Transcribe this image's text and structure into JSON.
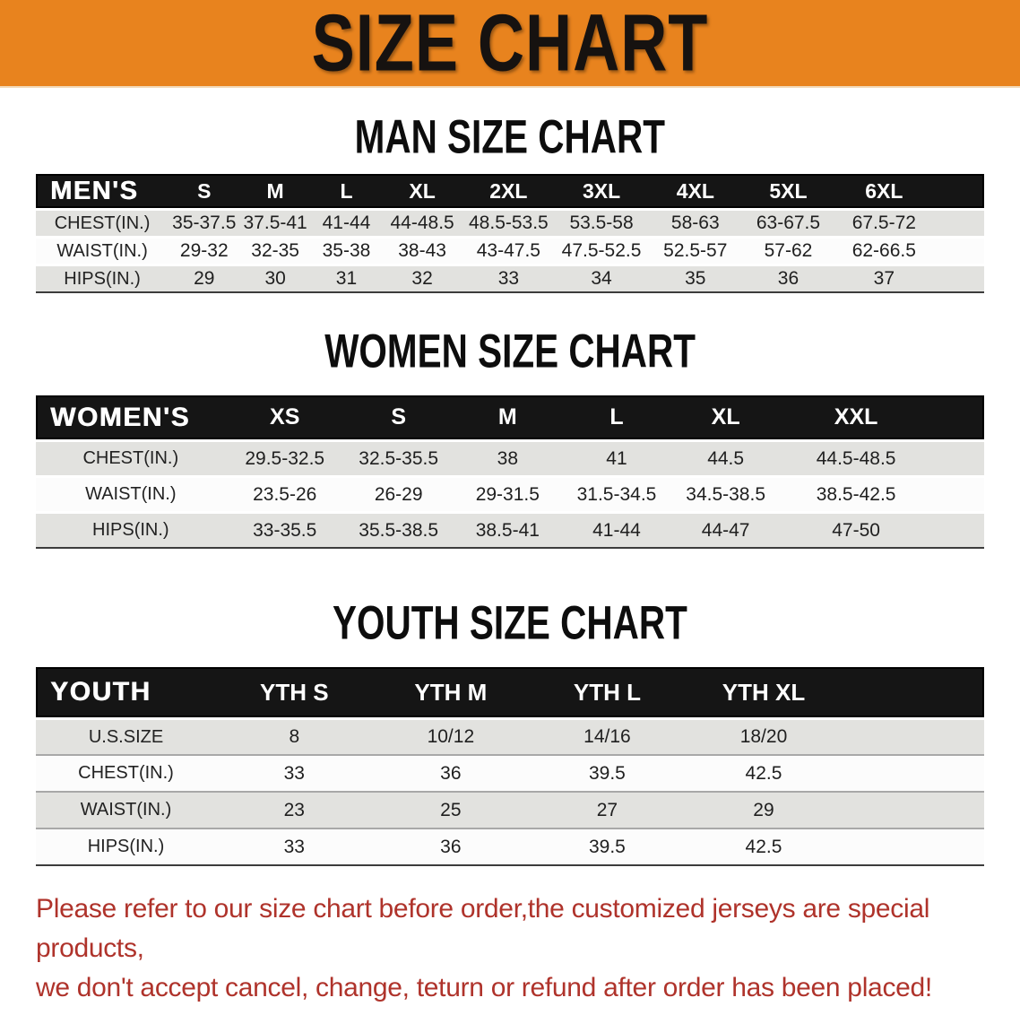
{
  "banner": {
    "title": "SIZE CHART"
  },
  "colors": {
    "banner_bg": "#E8831E",
    "header_bar": "#151515",
    "row_gray": "#E2E2DF",
    "row_white": "#FCFCFC",
    "disclaimer_red": "#AF332B"
  },
  "sections": [
    {
      "heading": "MAN SIZE CHART",
      "table": {
        "header_label": "MEN'S",
        "columns": [
          "S",
          "M",
          "L",
          "XL",
          "2XL",
          "3XL",
          "4XL",
          "5XL",
          "6XL"
        ],
        "rows": [
          {
            "label": "CHEST(IN.)",
            "values": [
              "35-37.5",
              "37.5-41",
              "41-44",
              "44-48.5",
              "48.5-53.5",
              "53.5-58",
              "58-63",
              "63-67.5",
              "67.5-72"
            ]
          },
          {
            "label": "WAIST(IN.)",
            "values": [
              "29-32",
              "32-35",
              "35-38",
              "38-43",
              "43-47.5",
              "47.5-52.5",
              "52.5-57",
              "57-62",
              "62-66.5"
            ]
          },
          {
            "label": "HIPS(IN.)",
            "values": [
              "29",
              "30",
              "31",
              "32",
              "33",
              "34",
              "35",
              "36",
              "37"
            ]
          }
        ]
      }
    },
    {
      "heading": "WOMEN SIZE CHART",
      "table": {
        "header_label": "WOMEN'S",
        "columns": [
          "XS",
          "S",
          "M",
          "L",
          "XL",
          "XXL"
        ],
        "rows": [
          {
            "label": "CHEST(IN.)",
            "values": [
              "29.5-32.5",
              "32.5-35.5",
              "38",
              "41",
              "44.5",
              "44.5-48.5"
            ]
          },
          {
            "label": "WAIST(IN.)",
            "values": [
              "23.5-26",
              "26-29",
              "29-31.5",
              "31.5-34.5",
              "34.5-38.5",
              "38.5-42.5"
            ]
          },
          {
            "label": "HIPS(IN.)",
            "values": [
              "33-35.5",
              "35.5-38.5",
              "38.5-41",
              "41-44",
              "44-47",
              "47-50"
            ]
          }
        ]
      }
    },
    {
      "heading": "YOUTH SIZE CHART",
      "table": {
        "header_label": "YOUTH",
        "columns": [
          "YTH S",
          "YTH M",
          "YTH L",
          "YTH XL"
        ],
        "rows": [
          {
            "label": "U.S.SIZE",
            "values": [
              "8",
              "10/12",
              "14/16",
              "18/20"
            ]
          },
          {
            "label": "CHEST(IN.)",
            "values": [
              "33",
              "36",
              "39.5",
              "42.5"
            ]
          },
          {
            "label": "WAIST(IN.)",
            "values": [
              "23",
              "25",
              "27",
              "29"
            ]
          },
          {
            "label": "HIPS(IN.)",
            "values": [
              "33",
              "36",
              "39.5",
              "42.5"
            ]
          }
        ]
      }
    }
  ],
  "disclaimer": {
    "line1": "Please refer to our size chart before order,the customized jerseys are special products,",
    "line2": "we don't accept cancel, change, teturn or refund after order has been placed!"
  }
}
